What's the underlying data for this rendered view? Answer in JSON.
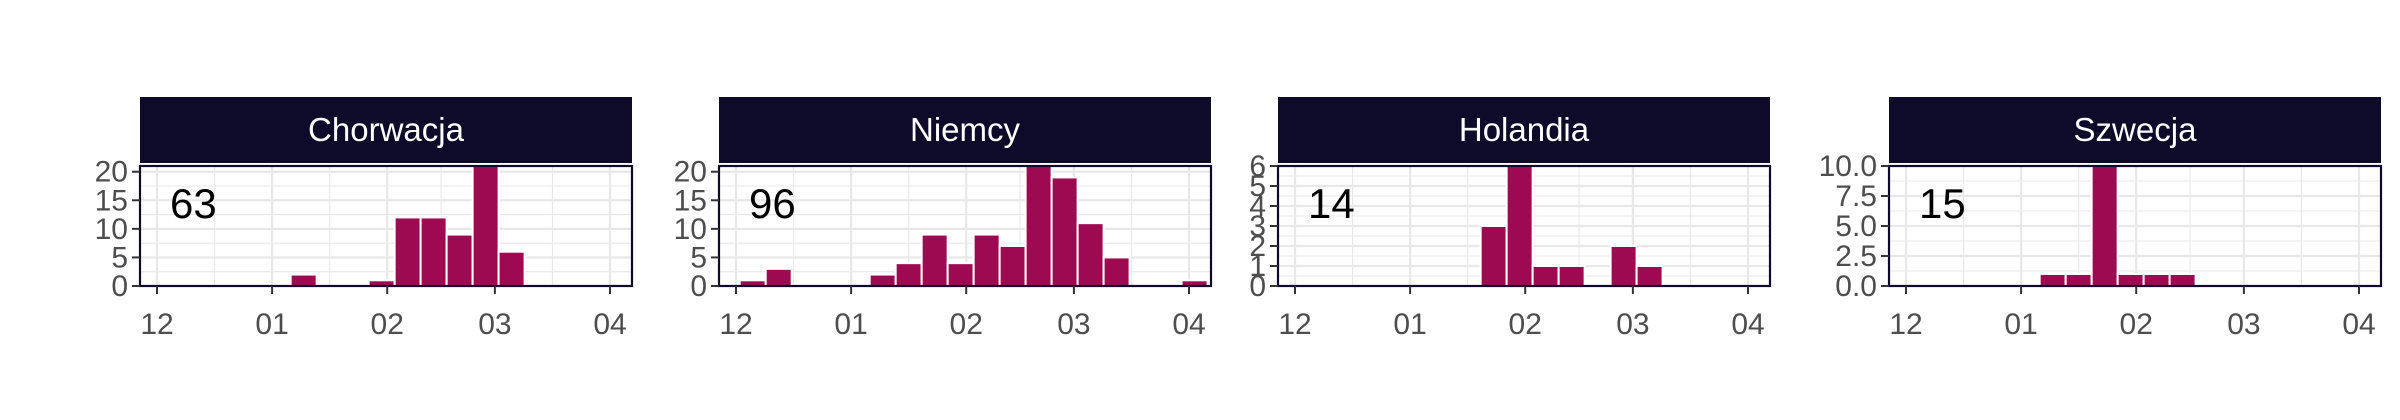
{
  "colors": {
    "bar": "#9e0a52",
    "strip_fill": "#0e0a2a",
    "panel_border": "#0e0a2a",
    "grid": "#e8e8e8",
    "tick_text": "#4d4d4d"
  },
  "chart_data": [
    {
      "type": "bar",
      "title": "Chorwacja",
      "count_label": "63",
      "xlabel": "",
      "ylabel": "",
      "x_ticks": [
        "12",
        "01",
        "02",
        "03",
        "04"
      ],
      "y_ticks": [
        "0",
        "5",
        "10",
        "15",
        "20"
      ],
      "ylim": [
        0,
        21
      ],
      "grid": true,
      "bars": [
        {
          "start": "2020-01-06",
          "end": "2020-01-13",
          "value": 2
        },
        {
          "start": "2020-01-20",
          "end": "2020-01-27",
          "value": 0
        },
        {
          "start": "2020-01-27",
          "end": "2020-02-03",
          "value": 1
        },
        {
          "start": "2020-02-03",
          "end": "2020-02-10",
          "value": 12
        },
        {
          "start": "2020-02-10",
          "end": "2020-02-17",
          "value": 12
        },
        {
          "start": "2020-02-17",
          "end": "2020-02-24",
          "value": 9
        },
        {
          "start": "2020-02-24",
          "end": "2020-03-02",
          "value": 21
        },
        {
          "start": "2020-03-02",
          "end": "2020-03-09",
          "value": 6
        }
      ]
    },
    {
      "type": "bar",
      "title": "Niemcy",
      "count_label": "96",
      "xlabel": "",
      "ylabel": "",
      "x_ticks": [
        "12",
        "01",
        "02",
        "03",
        "04"
      ],
      "y_ticks": [
        "0",
        "5",
        "10",
        "15",
        "20"
      ],
      "ylim": [
        0,
        21
      ],
      "grid": true,
      "bars": [
        {
          "start": "2019-12-02",
          "end": "2019-12-09",
          "value": 1
        },
        {
          "start": "2019-12-09",
          "end": "2019-12-16",
          "value": 3
        },
        {
          "start": "2020-01-06",
          "end": "2020-01-13",
          "value": 2
        },
        {
          "start": "2020-01-13",
          "end": "2020-01-20",
          "value": 4
        },
        {
          "start": "2020-01-20",
          "end": "2020-01-27",
          "value": 9
        },
        {
          "start": "2020-01-27",
          "end": "2020-02-03",
          "value": 4
        },
        {
          "start": "2020-02-03",
          "end": "2020-02-10",
          "value": 9
        },
        {
          "start": "2020-02-10",
          "end": "2020-02-17",
          "value": 7
        },
        {
          "start": "2020-02-17",
          "end": "2020-02-24",
          "value": 21
        },
        {
          "start": "2020-02-24",
          "end": "2020-03-02",
          "value": 19
        },
        {
          "start": "2020-03-02",
          "end": "2020-03-09",
          "value": 11
        },
        {
          "start": "2020-03-09",
          "end": "2020-03-16",
          "value": 5
        },
        {
          "start": "2020-03-30",
          "end": "2020-04-06",
          "value": 1
        }
      ]
    },
    {
      "type": "bar",
      "title": "Holandia",
      "count_label": "14",
      "xlabel": "",
      "ylabel": "",
      "x_ticks": [
        "12",
        "01",
        "02",
        "03",
        "04"
      ],
      "y_ticks": [
        "0",
        "1",
        "2",
        "3",
        "4",
        "5",
        "6"
      ],
      "ylim": [
        0,
        6
      ],
      "grid": true,
      "bars": [
        {
          "start": "2020-01-20",
          "end": "2020-01-27",
          "value": 3
        },
        {
          "start": "2020-01-27",
          "end": "2020-02-03",
          "value": 6
        },
        {
          "start": "2020-02-03",
          "end": "2020-02-10",
          "value": 1
        },
        {
          "start": "2020-02-10",
          "end": "2020-02-17",
          "value": 1
        },
        {
          "start": "2020-02-24",
          "end": "2020-03-02",
          "value": 2
        },
        {
          "start": "2020-03-02",
          "end": "2020-03-09",
          "value": 1
        }
      ]
    },
    {
      "type": "bar",
      "title": "Szwecja",
      "count_label": "15",
      "xlabel": "",
      "ylabel": "",
      "x_ticks": [
        "12",
        "01",
        "02",
        "03",
        "04"
      ],
      "y_ticks": [
        "0.0",
        "2.5",
        "5.0",
        "7.5",
        "10.0"
      ],
      "ylim": [
        0,
        10
      ],
      "grid": true,
      "bars": [
        {
          "start": "2020-01-06",
          "end": "2020-01-13",
          "value": 1
        },
        {
          "start": "2020-01-13",
          "end": "2020-01-20",
          "value": 1
        },
        {
          "start": "2020-01-20",
          "end": "2020-01-27",
          "value": 10
        },
        {
          "start": "2020-01-27",
          "end": "2020-02-03",
          "value": 1
        },
        {
          "start": "2020-02-03",
          "end": "2020-02-10",
          "value": 1
        },
        {
          "start": "2020-02-10",
          "end": "2020-02-17",
          "value": 1
        }
      ]
    }
  ]
}
